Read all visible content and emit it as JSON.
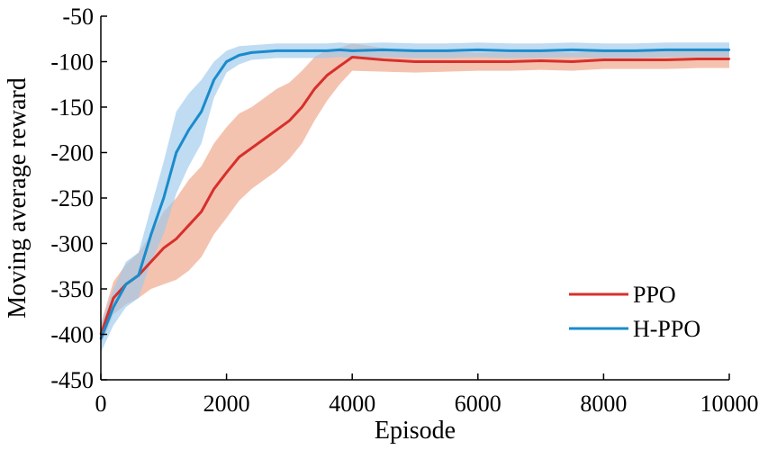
{
  "chart_data": {
    "type": "line",
    "xlabel": "Episode",
    "ylabel": "Moving average reward",
    "xlim": [
      0,
      10000
    ],
    "ylim": [
      -450,
      -50
    ],
    "xticks": [
      0,
      2000,
      4000,
      6000,
      8000,
      10000
    ],
    "yticks": [
      -50,
      -100,
      -150,
      -200,
      -250,
      -300,
      -350,
      -400,
      -450
    ],
    "legend_position": "bottom-right",
    "grid": false,
    "series": [
      {
        "name": "PPO",
        "color": "#d7302c",
        "band_color": "#efa98f",
        "x": [
          0,
          200,
          400,
          600,
          800,
          1000,
          1200,
          1400,
          1600,
          1800,
          2000,
          2200,
          2400,
          2600,
          2800,
          3000,
          3200,
          3400,
          3600,
          3800,
          4000,
          4500,
          5000,
          5500,
          6000,
          6500,
          7000,
          7500,
          8000,
          8500,
          9000,
          9500,
          10000
        ],
        "y": [
          -400,
          -360,
          -345,
          -335,
          -320,
          -305,
          -295,
          -280,
          -265,
          -240,
          -222,
          -205,
          -195,
          -185,
          -175,
          -165,
          -150,
          -130,
          -115,
          -105,
          -95,
          -98,
          -100,
          -100,
          -100,
          -100,
          -99,
          -100,
          -98,
          -98,
          -98,
          -97,
          -97
        ],
        "band": [
          12,
          18,
          22,
          25,
          30,
          40,
          45,
          50,
          50,
          50,
          50,
          48,
          45,
          45,
          45,
          42,
          40,
          35,
          28,
          20,
          15,
          13,
          12,
          11,
          10,
          10,
          10,
          10,
          10,
          10,
          10,
          10,
          10
        ]
      },
      {
        "name": "H-PPO",
        "color": "#1a8bcb",
        "band_color": "#9dcaec",
        "x": [
          0,
          200,
          400,
          600,
          800,
          1000,
          1200,
          1400,
          1600,
          1800,
          2000,
          2200,
          2400,
          2600,
          2800,
          3000,
          3200,
          3400,
          3600,
          3800,
          4000,
          4500,
          5000,
          5500,
          6000,
          6500,
          7000,
          7500,
          8000,
          8500,
          9000,
          9500,
          10000
        ],
        "y": [
          -405,
          -370,
          -345,
          -335,
          -290,
          -250,
          -200,
          -175,
          -155,
          -120,
          -100,
          -93,
          -90,
          -89,
          -88,
          -88,
          -88,
          -88,
          -88,
          -87,
          -88,
          -87,
          -88,
          -88,
          -87,
          -88,
          -88,
          -87,
          -88,
          -88,
          -87,
          -87,
          -87
        ],
        "band": [
          15,
          20,
          25,
          25,
          30,
          40,
          45,
          40,
          35,
          20,
          12,
          10,
          8,
          8,
          8,
          8,
          8,
          8,
          8,
          8,
          8,
          8,
          8,
          8,
          8,
          8,
          8,
          8,
          8,
          8,
          8,
          8,
          8
        ]
      }
    ]
  }
}
